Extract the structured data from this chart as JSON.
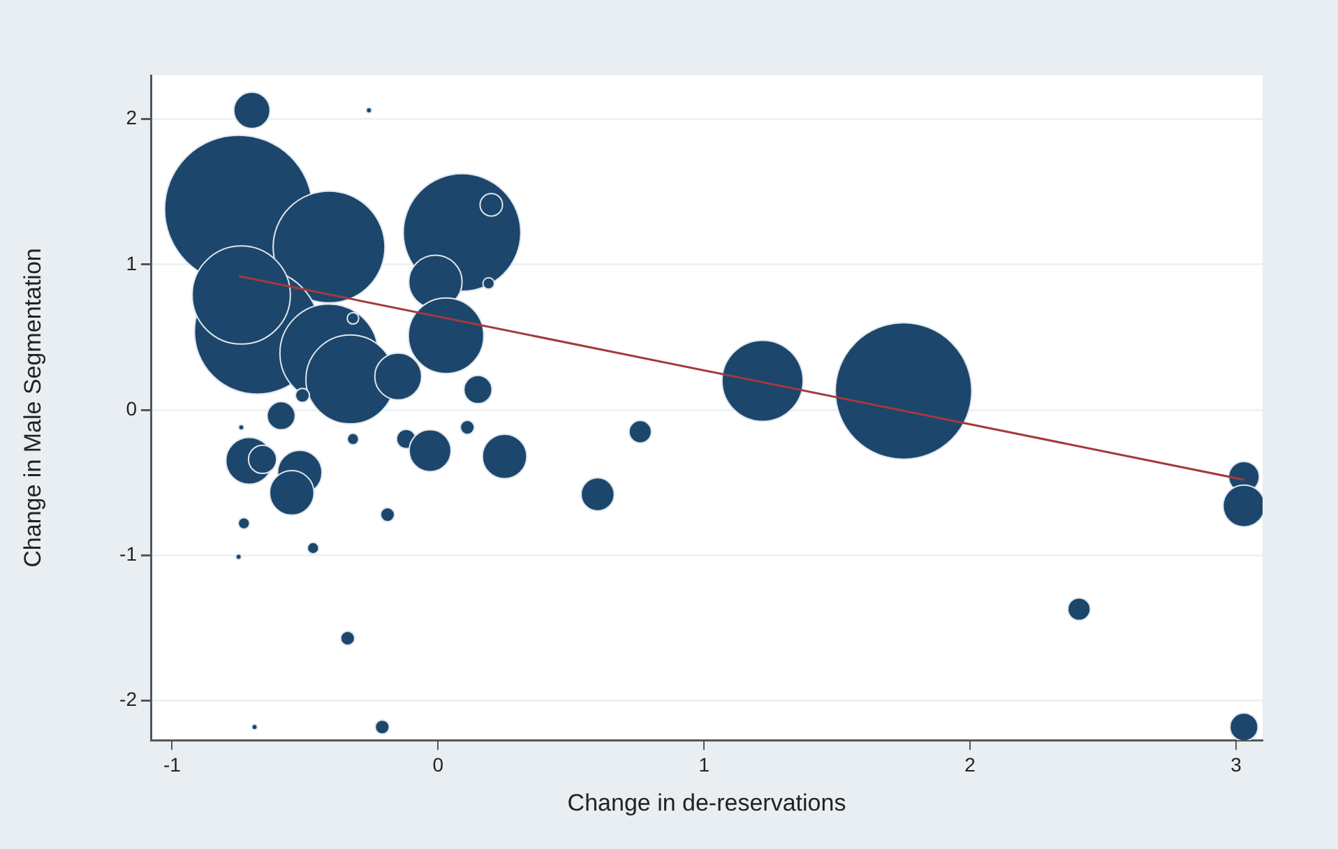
{
  "chart_data": {
    "type": "bubble",
    "xlabel": "Change in de-reservations",
    "ylabel": "Change in Male Segmentation",
    "xlim": [
      -1.08,
      3.1
    ],
    "xticks": [
      -1,
      0,
      1,
      2,
      3
    ],
    "ylim": [
      -2.27,
      2.3
    ],
    "yticks": [
      -2,
      -1,
      0,
      1,
      2
    ],
    "grid": "y",
    "legend": false,
    "series": [
      {
        "type": "bubble",
        "color": "#1c466c",
        "x": [
          -0.7,
          -0.26,
          -0.75,
          -0.41,
          0.09,
          -0.01,
          0.19,
          -0.68,
          0.03,
          -0.41,
          -0.33,
          -0.15,
          0.15,
          -0.51,
          -0.59,
          -0.74,
          -0.32,
          -0.12,
          -0.03,
          0.11,
          0.25,
          -0.71,
          -0.66,
          -0.52,
          -0.55,
          -0.73,
          -0.75,
          -0.47,
          -0.19,
          -0.34,
          -0.69,
          -0.21,
          0.6,
          0.76,
          1.22,
          1.75,
          2.41,
          3.03,
          3.03,
          3.03,
          0.2,
          -0.74,
          -0.32
        ],
        "values": [
          2.06,
          2.06,
          1.38,
          1.12,
          1.22,
          0.88,
          0.87,
          0.54,
          0.51,
          0.39,
          0.21,
          0.23,
          0.14,
          0.1,
          -0.04,
          -0.12,
          -0.2,
          -0.2,
          -0.28,
          -0.12,
          -0.32,
          -0.35,
          -0.34,
          -0.43,
          -0.57,
          -0.78,
          -1.01,
          -0.95,
          -0.72,
          -1.57,
          -2.18,
          -2.18,
          -0.58,
          -0.15,
          0.2,
          0.13,
          -1.37,
          -0.46,
          -0.66,
          -2.18,
          1.41,
          0.79,
          0.63
        ],
        "sizes": [
          0.06,
          0.0014,
          1,
          0.57,
          0.63,
          0.13,
          0.006,
          0.72,
          0.26,
          0.44,
          0.36,
          0.1,
          0.036,
          0.009,
          0.036,
          0.0014,
          0.006,
          0.017,
          0.08,
          0.009,
          0.09,
          0.1,
          0.036,
          0.09,
          0.09,
          0.006,
          0.0014,
          0.006,
          0.009,
          0.009,
          0.0014,
          0.009,
          0.05,
          0.023,
          0.3,
          0.85,
          0.023,
          0.043,
          0.08,
          0.036,
          0.023,
          0.44,
          0.006
        ]
      },
      {
        "type": "line",
        "color": "#a33a3a",
        "x": [
          -0.75,
          3.03
        ],
        "values": [
          0.92,
          -0.48
        ]
      }
    ]
  }
}
